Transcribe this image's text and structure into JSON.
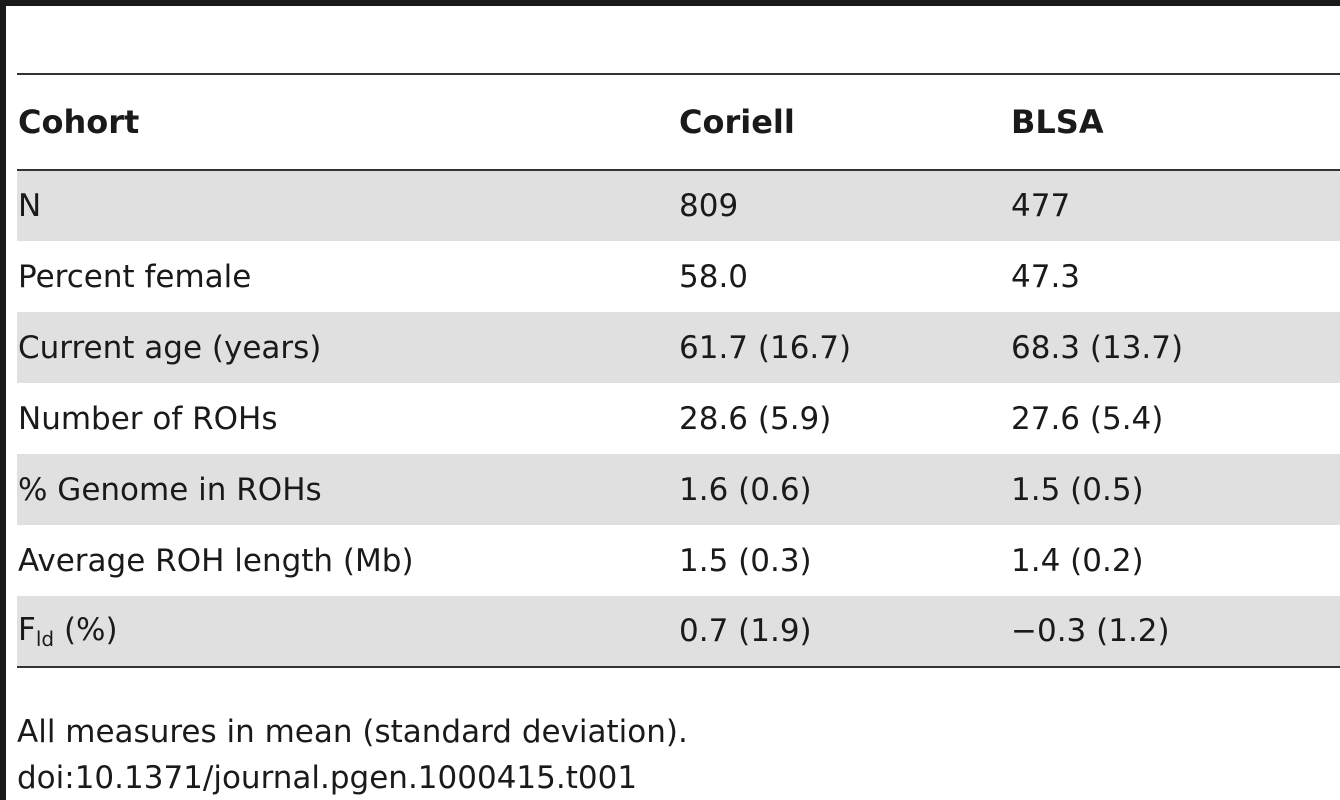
{
  "table": {
    "headers": [
      "Cohort",
      "Coriell",
      "BLSA"
    ],
    "rows": [
      {
        "label": "N",
        "coriell": "809",
        "blsa": "477"
      },
      {
        "label": "Percent female",
        "coriell": "58.0",
        "blsa": "47.3"
      },
      {
        "label": "Current age (years)",
        "coriell": "61.7 (16.7)",
        "blsa": "68.3 (13.7)"
      },
      {
        "label": "Number of ROHs",
        "coriell": "28.6 (5.9)",
        "blsa": "27.6 (5.4)"
      },
      {
        "label": "% Genome in ROHs",
        "coriell": "1.6 (0.6)",
        "blsa": "1.5 (0.5)"
      },
      {
        "label": "Average ROH length (Mb)",
        "coriell": "1.5 (0.3)",
        "blsa": "1.4 (0.2)"
      },
      {
        "label_main": "F",
        "label_sub": "ld",
        "label_rest": " (%)",
        "coriell": "0.7 (1.9)",
        "blsa": "−0.3 (1.2)"
      }
    ]
  },
  "footnote": "All measures in mean (standard deviation).",
  "doi": "doi:10.1371/journal.pgen.1000415.t001",
  "colors": {
    "row_shade": "#e0e0e0",
    "rule": "#1a1a1a"
  }
}
